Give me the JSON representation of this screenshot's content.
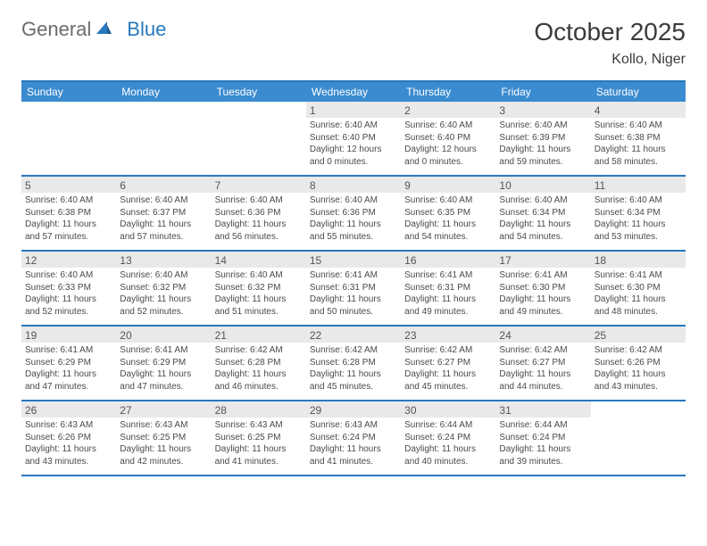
{
  "brand": {
    "part1": "General",
    "part2": "Blue"
  },
  "title": "October 2025",
  "location": "Kollo, Niger",
  "colors": {
    "accent": "#2878bd",
    "header_bg": "#3b8bd0",
    "strip_bg": "#e9e9e9",
    "text": "#333333",
    "logo_gray": "#6b6b6b"
  },
  "dow": [
    "Sunday",
    "Monday",
    "Tuesday",
    "Wednesday",
    "Thursday",
    "Friday",
    "Saturday"
  ],
  "weeks": [
    [
      {
        "n": "",
        "lines": []
      },
      {
        "n": "",
        "lines": []
      },
      {
        "n": "",
        "lines": []
      },
      {
        "n": "1",
        "lines": [
          "Sunrise: 6:40 AM",
          "Sunset: 6:40 PM",
          "Daylight: 12 hours and 0 minutes."
        ]
      },
      {
        "n": "2",
        "lines": [
          "Sunrise: 6:40 AM",
          "Sunset: 6:40 PM",
          "Daylight: 12 hours and 0 minutes."
        ]
      },
      {
        "n": "3",
        "lines": [
          "Sunrise: 6:40 AM",
          "Sunset: 6:39 PM",
          "Daylight: 11 hours and 59 minutes."
        ]
      },
      {
        "n": "4",
        "lines": [
          "Sunrise: 6:40 AM",
          "Sunset: 6:38 PM",
          "Daylight: 11 hours and 58 minutes."
        ]
      }
    ],
    [
      {
        "n": "5",
        "lines": [
          "Sunrise: 6:40 AM",
          "Sunset: 6:38 PM",
          "Daylight: 11 hours and 57 minutes."
        ]
      },
      {
        "n": "6",
        "lines": [
          "Sunrise: 6:40 AM",
          "Sunset: 6:37 PM",
          "Daylight: 11 hours and 57 minutes."
        ]
      },
      {
        "n": "7",
        "lines": [
          "Sunrise: 6:40 AM",
          "Sunset: 6:36 PM",
          "Daylight: 11 hours and 56 minutes."
        ]
      },
      {
        "n": "8",
        "lines": [
          "Sunrise: 6:40 AM",
          "Sunset: 6:36 PM",
          "Daylight: 11 hours and 55 minutes."
        ]
      },
      {
        "n": "9",
        "lines": [
          "Sunrise: 6:40 AM",
          "Sunset: 6:35 PM",
          "Daylight: 11 hours and 54 minutes."
        ]
      },
      {
        "n": "10",
        "lines": [
          "Sunrise: 6:40 AM",
          "Sunset: 6:34 PM",
          "Daylight: 11 hours and 54 minutes."
        ]
      },
      {
        "n": "11",
        "lines": [
          "Sunrise: 6:40 AM",
          "Sunset: 6:34 PM",
          "Daylight: 11 hours and 53 minutes."
        ]
      }
    ],
    [
      {
        "n": "12",
        "lines": [
          "Sunrise: 6:40 AM",
          "Sunset: 6:33 PM",
          "Daylight: 11 hours and 52 minutes."
        ]
      },
      {
        "n": "13",
        "lines": [
          "Sunrise: 6:40 AM",
          "Sunset: 6:32 PM",
          "Daylight: 11 hours and 52 minutes."
        ]
      },
      {
        "n": "14",
        "lines": [
          "Sunrise: 6:40 AM",
          "Sunset: 6:32 PM",
          "Daylight: 11 hours and 51 minutes."
        ]
      },
      {
        "n": "15",
        "lines": [
          "Sunrise: 6:41 AM",
          "Sunset: 6:31 PM",
          "Daylight: 11 hours and 50 minutes."
        ]
      },
      {
        "n": "16",
        "lines": [
          "Sunrise: 6:41 AM",
          "Sunset: 6:31 PM",
          "Daylight: 11 hours and 49 minutes."
        ]
      },
      {
        "n": "17",
        "lines": [
          "Sunrise: 6:41 AM",
          "Sunset: 6:30 PM",
          "Daylight: 11 hours and 49 minutes."
        ]
      },
      {
        "n": "18",
        "lines": [
          "Sunrise: 6:41 AM",
          "Sunset: 6:30 PM",
          "Daylight: 11 hours and 48 minutes."
        ]
      }
    ],
    [
      {
        "n": "19",
        "lines": [
          "Sunrise: 6:41 AM",
          "Sunset: 6:29 PM",
          "Daylight: 11 hours and 47 minutes."
        ]
      },
      {
        "n": "20",
        "lines": [
          "Sunrise: 6:41 AM",
          "Sunset: 6:29 PM",
          "Daylight: 11 hours and 47 minutes."
        ]
      },
      {
        "n": "21",
        "lines": [
          "Sunrise: 6:42 AM",
          "Sunset: 6:28 PM",
          "Daylight: 11 hours and 46 minutes."
        ]
      },
      {
        "n": "22",
        "lines": [
          "Sunrise: 6:42 AM",
          "Sunset: 6:28 PM",
          "Daylight: 11 hours and 45 minutes."
        ]
      },
      {
        "n": "23",
        "lines": [
          "Sunrise: 6:42 AM",
          "Sunset: 6:27 PM",
          "Daylight: 11 hours and 45 minutes."
        ]
      },
      {
        "n": "24",
        "lines": [
          "Sunrise: 6:42 AM",
          "Sunset: 6:27 PM",
          "Daylight: 11 hours and 44 minutes."
        ]
      },
      {
        "n": "25",
        "lines": [
          "Sunrise: 6:42 AM",
          "Sunset: 6:26 PM",
          "Daylight: 11 hours and 43 minutes."
        ]
      }
    ],
    [
      {
        "n": "26",
        "lines": [
          "Sunrise: 6:43 AM",
          "Sunset: 6:26 PM",
          "Daylight: 11 hours and 43 minutes."
        ]
      },
      {
        "n": "27",
        "lines": [
          "Sunrise: 6:43 AM",
          "Sunset: 6:25 PM",
          "Daylight: 11 hours and 42 minutes."
        ]
      },
      {
        "n": "28",
        "lines": [
          "Sunrise: 6:43 AM",
          "Sunset: 6:25 PM",
          "Daylight: 11 hours and 41 minutes."
        ]
      },
      {
        "n": "29",
        "lines": [
          "Sunrise: 6:43 AM",
          "Sunset: 6:24 PM",
          "Daylight: 11 hours and 41 minutes."
        ]
      },
      {
        "n": "30",
        "lines": [
          "Sunrise: 6:44 AM",
          "Sunset: 6:24 PM",
          "Daylight: 11 hours and 40 minutes."
        ]
      },
      {
        "n": "31",
        "lines": [
          "Sunrise: 6:44 AM",
          "Sunset: 6:24 PM",
          "Daylight: 11 hours and 39 minutes."
        ]
      },
      {
        "n": "",
        "lines": []
      }
    ]
  ]
}
